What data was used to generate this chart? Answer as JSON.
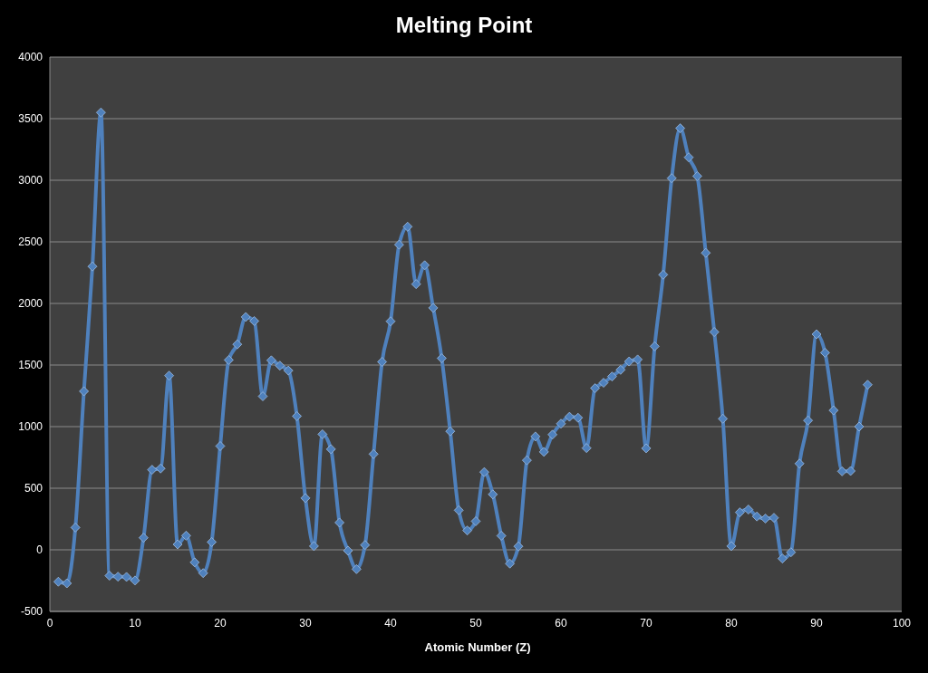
{
  "chart_data": {
    "type": "line",
    "title": "Melting Point",
    "xlabel": "Atomic Number (Z)",
    "x": [
      1,
      2,
      3,
      4,
      5,
      6,
      7,
      8,
      9,
      10,
      11,
      12,
      13,
      14,
      15,
      16,
      17,
      18,
      19,
      20,
      21,
      22,
      23,
      24,
      25,
      26,
      27,
      28,
      29,
      30,
      31,
      32,
      33,
      34,
      35,
      36,
      37,
      38,
      39,
      40,
      41,
      42,
      43,
      44,
      45,
      46,
      47,
      48,
      49,
      50,
      51,
      52,
      53,
      54,
      55,
      56,
      57,
      58,
      59,
      60,
      61,
      62,
      63,
      64,
      65,
      66,
      67,
      68,
      69,
      70,
      71,
      72,
      73,
      74,
      75,
      76,
      77,
      78,
      79,
      80,
      81,
      82,
      83,
      84,
      85,
      86,
      87,
      88,
      89,
      90,
      91,
      92,
      93,
      94,
      95,
      96
    ],
    "series": [
      {
        "color": "#4f81bd",
        "values": [
          -259,
          -272,
          181,
          1287,
          2300,
          3550,
          -210,
          -218,
          -220,
          -249,
          98,
          650,
          660,
          1414,
          44,
          115,
          -102,
          -189,
          63,
          842,
          1541,
          1668,
          1890,
          1857,
          1246,
          1538,
          1495,
          1455,
          1085,
          420,
          30,
          938,
          817,
          221,
          -7,
          -157,
          39,
          777,
          1526,
          1855,
          2477,
          2623,
          2157,
          2310,
          1964,
          1555,
          962,
          321,
          157,
          232,
          631,
          450,
          114,
          -112,
          28,
          727,
          920,
          795,
          935,
          1024,
          1080,
          1072,
          826,
          1312,
          1356,
          1407,
          1461,
          1529,
          1545,
          824,
          1652,
          2233,
          3017,
          3422,
          3186,
          3033,
          2410,
          1768,
          1064,
          30,
          304,
          327,
          271,
          254,
          260,
          -71,
          -20,
          700,
          1050,
          1750,
          1600,
          1132,
          637,
          640,
          1000,
          1340
        ]
      }
    ],
    "xlim": [
      0,
      100
    ],
    "xticks": [
      0,
      10,
      20,
      30,
      40,
      50,
      60,
      70,
      80,
      90,
      100
    ],
    "ylim": [
      -500,
      4000
    ],
    "yticks": [
      -500,
      0,
      500,
      1000,
      1500,
      2000,
      2500,
      3000,
      3500,
      4000
    ],
    "grid": "y",
    "marker": "diamond",
    "line_style": "solid"
  }
}
